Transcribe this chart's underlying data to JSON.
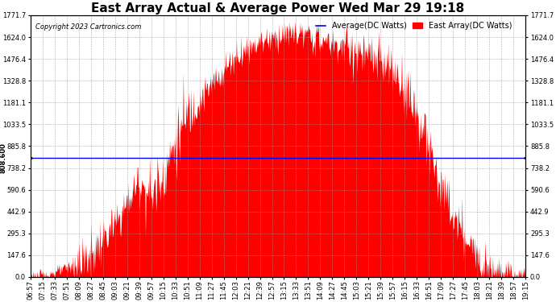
{
  "title": "East Array Actual & Average Power Wed Mar 29 19:18",
  "copyright": "Copyright 2023 Cartronics.com",
  "legend_average": "Average(DC Watts)",
  "legend_east": "East Array(DC Watts)",
  "average_color": "#0000ff",
  "east_color": "#ff0000",
  "background_color": "#ffffff",
  "grid_color": "#999999",
  "yticks": [
    0.0,
    147.6,
    295.3,
    442.9,
    590.6,
    738.2,
    885.8,
    1033.5,
    1181.1,
    1328.8,
    1476.4,
    1624.0,
    1771.7
  ],
  "ymax": 1771.7,
  "ymin": 0.0,
  "average_line_value": 808.6,
  "xtick_labels": [
    "06:57",
    "07:15",
    "07:33",
    "07:51",
    "08:09",
    "08:27",
    "08:45",
    "09:03",
    "09:21",
    "09:39",
    "09:57",
    "10:15",
    "10:33",
    "10:51",
    "11:09",
    "11:27",
    "11:45",
    "12:03",
    "12:21",
    "12:39",
    "12:57",
    "13:15",
    "13:33",
    "13:51",
    "14:09",
    "14:27",
    "14:45",
    "15:03",
    "15:21",
    "15:39",
    "15:57",
    "16:15",
    "16:33",
    "16:51",
    "17:09",
    "17:27",
    "17:45",
    "18:03",
    "18:21",
    "18:39",
    "18:57",
    "19:15"
  ],
  "title_fontsize": 11,
  "tick_fontsize": 6,
  "copyright_fontsize": 6,
  "legend_fontsize": 7,
  "east_data": [
    5,
    10,
    30,
    60,
    100,
    150,
    250,
    350,
    500,
    650,
    550,
    700,
    900,
    1100,
    1200,
    1300,
    1400,
    1500,
    1550,
    1600,
    1620,
    1640,
    1650,
    1630,
    1600,
    1580,
    1560,
    1520,
    1490,
    1450,
    1380,
    1300,
    1100,
    850,
    600,
    400,
    250,
    150,
    80,
    40,
    15,
    5
  ],
  "east_data_noisy": true
}
